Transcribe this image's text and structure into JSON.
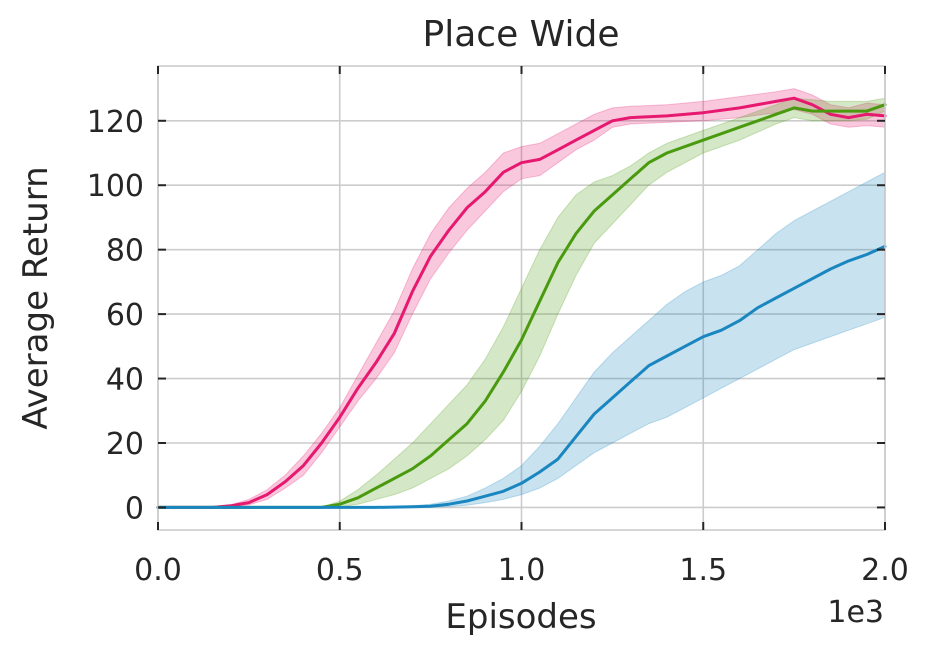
{
  "chart_data": {
    "type": "line",
    "title": "Place Wide",
    "xlabel": "Episodes",
    "ylabel": "Average Return",
    "x_offset_label": "1e3",
    "xlim": [
      0,
      2.0
    ],
    "ylim": [
      -7,
      137
    ],
    "xticks": [
      0.0,
      0.5,
      1.0,
      1.5,
      2.0
    ],
    "xtick_labels": [
      "0.0",
      "0.5",
      "1.0",
      "1.5",
      "2.0"
    ],
    "yticks": [
      0,
      20,
      40,
      60,
      80,
      100,
      120
    ],
    "ytick_labels": [
      "0",
      "20",
      "40",
      "60",
      "80",
      "100",
      "120"
    ],
    "grid": true,
    "series": [
      {
        "color": "#e6186f",
        "x": [
          0.0,
          0.15,
          0.2,
          0.25,
          0.3,
          0.35,
          0.4,
          0.45,
          0.5,
          0.55,
          0.6,
          0.65,
          0.7,
          0.75,
          0.8,
          0.85,
          0.9,
          0.95,
          1.0,
          1.05,
          1.1,
          1.15,
          1.2,
          1.25,
          1.3,
          1.4,
          1.5,
          1.6,
          1.7,
          1.75,
          1.8,
          1.85,
          1.9,
          1.95,
          2.0
        ],
        "y": [
          0,
          0,
          0.5,
          1.5,
          4,
          8,
          13,
          20,
          28,
          37,
          45,
          54,
          67,
          78,
          86,
          93,
          98,
          104,
          107,
          108,
          111,
          114,
          117,
          120,
          121,
          121.5,
          122.5,
          124,
          126,
          127,
          125,
          122,
          121,
          122,
          121.5
        ],
        "lower": [
          0,
          0,
          0.2,
          0.8,
          2.5,
          6,
          10,
          17,
          25,
          33,
          40,
          48,
          60,
          71,
          79,
          86,
          92,
          98,
          102,
          103,
          107,
          111,
          114,
          118,
          119,
          119.5,
          120,
          121,
          122.5,
          123.5,
          122,
          119,
          118,
          118.5,
          118
        ],
        "upper": [
          0,
          0,
          0.8,
          2.5,
          5.5,
          10,
          16,
          23,
          31,
          41,
          51,
          61,
          74,
          85,
          93,
          99,
          104,
          110,
          112,
          113,
          116,
          119,
          122,
          124,
          124.5,
          125,
          126,
          127.5,
          129,
          130,
          128,
          125,
          124,
          125.5,
          125
        ]
      },
      {
        "color": "#4a9a10",
        "x": [
          0.0,
          0.45,
          0.5,
          0.55,
          0.6,
          0.65,
          0.7,
          0.75,
          0.8,
          0.85,
          0.9,
          0.95,
          1.0,
          1.05,
          1.1,
          1.15,
          1.2,
          1.25,
          1.3,
          1.35,
          1.4,
          1.5,
          1.6,
          1.65,
          1.7,
          1.75,
          1.8,
          1.85,
          1.9,
          1.95,
          2.0
        ],
        "y": [
          0,
          0,
          1,
          3,
          6,
          9,
          12,
          16,
          21,
          26,
          33,
          42,
          52,
          64,
          76,
          85,
          92,
          97,
          102,
          107,
          110,
          114,
          118,
          120,
          122,
          124,
          123,
          123,
          123,
          123,
          125
        ],
        "lower": [
          0,
          0,
          0.2,
          1,
          2.5,
          4,
          6,
          9,
          12,
          16,
          21,
          27,
          36,
          47,
          60,
          72,
          82,
          88,
          94,
          100,
          104,
          110,
          114,
          116.5,
          119,
          121,
          120,
          120,
          120,
          120.5,
          123
        ],
        "upper": [
          0,
          0,
          2,
          5.5,
          10,
          15,
          20,
          26,
          32,
          38,
          46,
          56,
          68,
          80,
          90,
          97,
          101,
          103,
          106,
          110,
          113,
          117,
          121,
          123,
          125,
          127,
          126.5,
          126,
          126,
          126,
          127
        ]
      },
      {
        "color": "#1a86c0",
        "x": [
          0.0,
          0.6,
          0.7,
          0.75,
          0.8,
          0.85,
          0.9,
          0.95,
          1.0,
          1.05,
          1.1,
          1.15,
          1.2,
          1.25,
          1.3,
          1.35,
          1.4,
          1.45,
          1.5,
          1.55,
          1.6,
          1.65,
          1.7,
          1.75,
          1.8,
          1.85,
          1.9,
          1.95,
          2.0
        ],
        "y": [
          0,
          0,
          0.2,
          0.4,
          1,
          2,
          3.5,
          5,
          7.5,
          11,
          15,
          22,
          29,
          34,
          39,
          44,
          47,
          50,
          53,
          55,
          58,
          62,
          65,
          68,
          71,
          74,
          76.5,
          78.5,
          81
        ],
        "lower": [
          0,
          0,
          0,
          0.1,
          0.3,
          0.7,
          1.5,
          2.5,
          4,
          6,
          9,
          13,
          17,
          20,
          23,
          26,
          28,
          31,
          34,
          37,
          40,
          43,
          46,
          49,
          51,
          53,
          55,
          57,
          59
        ],
        "upper": [
          0,
          0,
          0.5,
          1,
          2,
          3.5,
          6,
          9,
          13,
          19,
          26,
          34,
          42,
          48,
          53,
          58,
          63,
          67,
          70,
          72,
          75,
          80,
          85,
          89,
          92,
          95,
          98,
          101,
          104
        ]
      }
    ]
  }
}
